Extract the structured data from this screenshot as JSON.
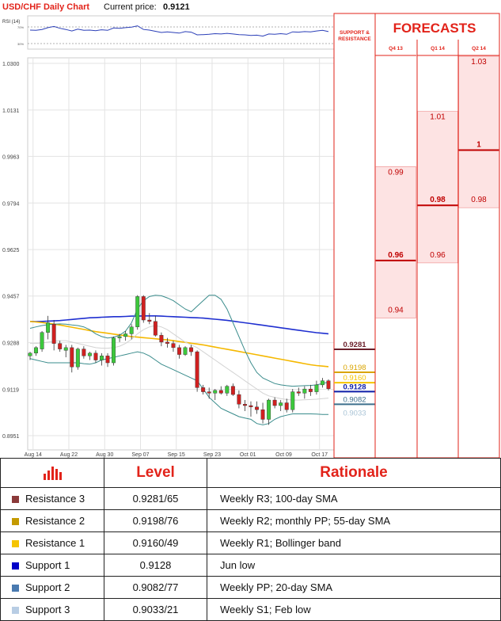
{
  "header": {
    "pair_title": "USD/CHF Daily Chart",
    "current_price_label": "Current price:",
    "current_price_value": "0.9121"
  },
  "rsi": {
    "label": "RSI (14)",
    "upper_level": "70%",
    "lower_level": "30%"
  },
  "support_resistance": {
    "heading_line1": "SUPPORT &",
    "heading_line2": "RESISTANCE",
    "levels": [
      {
        "value": 0.9281,
        "text": "0.9281",
        "color": "#6b1f2a"
      },
      {
        "value": 0.9198,
        "text": "0.9198",
        "color": "#d9a400"
      },
      {
        "value": 0.916,
        "text": "0.9160",
        "color": "#f5c400"
      },
      {
        "value": 0.9128,
        "text": "0.9128",
        "color": "#0d1ea8"
      },
      {
        "value": 0.9082,
        "text": "0.9082",
        "color": "#3d6f8c"
      },
      {
        "value": 0.9033,
        "text": "0.9033",
        "color": "#a9c4d6"
      }
    ]
  },
  "forecasts": {
    "title": "FORECASTS",
    "columns": [
      {
        "label": "Q4 13",
        "low": 0.94,
        "high": 0.99,
        "main": 0.96,
        "low_text": "0.94",
        "high_text": "0.99",
        "main_text": "0.96"
      },
      {
        "label": "Q1 14",
        "low": 0.96,
        "high": 1.01,
        "main": 0.98,
        "low_text": "0.96",
        "high_text": "1.01",
        "main_text": "0.98"
      },
      {
        "label": "Q2 14",
        "low": 0.98,
        "high": 1.03,
        "main": 1.0,
        "low_text": "0.98",
        "high_text": "1.03",
        "main_text": "1"
      }
    ]
  },
  "chart_data": {
    "type": "candlestick",
    "title": "USD/CHF Daily Chart",
    "y_tick_labels": [
      "1.0300",
      "1.0131",
      "0.9963",
      "0.9794",
      "0.9625",
      "0.9457",
      "0.9288",
      "0.9119",
      "0.8951"
    ],
    "y_ticks": [
      1.03,
      1.0131,
      0.9963,
      0.9794,
      0.9625,
      0.9457,
      0.9288,
      0.9119,
      0.8951
    ],
    "ylim": [
      0.8951,
      1.03
    ],
    "x_tick_labels": [
      "Aug 14",
      "Aug 22",
      "Aug 30",
      "Sep 07",
      "Sep 15",
      "Sep 23",
      "Oct 01",
      "Oct 09",
      "Oct 17"
    ],
    "x_tick_index": [
      0,
      6,
      12,
      18,
      24,
      30,
      36,
      42,
      48
    ],
    "candles": [
      {
        "o": 0.924,
        "h": 0.9255,
        "l": 0.9225,
        "c": 0.925
      },
      {
        "o": 0.925,
        "h": 0.9275,
        "l": 0.924,
        "c": 0.927
      },
      {
        "o": 0.9265,
        "h": 0.933,
        "l": 0.9255,
        "c": 0.9325
      },
      {
        "o": 0.9325,
        "h": 0.9385,
        "l": 0.93,
        "c": 0.936
      },
      {
        "o": 0.9355,
        "h": 0.937,
        "l": 0.926,
        "c": 0.9285
      },
      {
        "o": 0.9285,
        "h": 0.9295,
        "l": 0.9255,
        "c": 0.9265
      },
      {
        "o": 0.926,
        "h": 0.928,
        "l": 0.9235,
        "c": 0.927
      },
      {
        "o": 0.927,
        "h": 0.928,
        "l": 0.918,
        "c": 0.92
      },
      {
        "o": 0.92,
        "h": 0.927,
        "l": 0.919,
        "c": 0.9265
      },
      {
        "o": 0.9265,
        "h": 0.9275,
        "l": 0.923,
        "c": 0.924
      },
      {
        "o": 0.924,
        "h": 0.9255,
        "l": 0.9225,
        "c": 0.925
      },
      {
        "o": 0.925,
        "h": 0.926,
        "l": 0.9215,
        "c": 0.9225
      },
      {
        "o": 0.9225,
        "h": 0.925,
        "l": 0.9205,
        "c": 0.924
      },
      {
        "o": 0.924,
        "h": 0.925,
        "l": 0.92,
        "c": 0.9215
      },
      {
        "o": 0.9215,
        "h": 0.931,
        "l": 0.9205,
        "c": 0.9305
      },
      {
        "o": 0.9305,
        "h": 0.932,
        "l": 0.929,
        "c": 0.931
      },
      {
        "o": 0.931,
        "h": 0.933,
        "l": 0.9295,
        "c": 0.932
      },
      {
        "o": 0.932,
        "h": 0.9355,
        "l": 0.93,
        "c": 0.9345
      },
      {
        "o": 0.9345,
        "h": 0.946,
        "l": 0.9335,
        "c": 0.9455
      },
      {
        "o": 0.9455,
        "h": 0.946,
        "l": 0.936,
        "c": 0.937
      },
      {
        "o": 0.937,
        "h": 0.9395,
        "l": 0.9355,
        "c": 0.9365
      },
      {
        "o": 0.9365,
        "h": 0.9385,
        "l": 0.931,
        "c": 0.9315
      },
      {
        "o": 0.9315,
        "h": 0.9325,
        "l": 0.9275,
        "c": 0.929
      },
      {
        "o": 0.929,
        "h": 0.9305,
        "l": 0.927,
        "c": 0.9285
      },
      {
        "o": 0.9285,
        "h": 0.9295,
        "l": 0.9255,
        "c": 0.927
      },
      {
        "o": 0.927,
        "h": 0.928,
        "l": 0.923,
        "c": 0.9245
      },
      {
        "o": 0.9245,
        "h": 0.9275,
        "l": 0.924,
        "c": 0.927
      },
      {
        "o": 0.927,
        "h": 0.928,
        "l": 0.924,
        "c": 0.9255
      },
      {
        "o": 0.9255,
        "h": 0.926,
        "l": 0.911,
        "c": 0.9125
      },
      {
        "o": 0.9125,
        "h": 0.9135,
        "l": 0.91,
        "c": 0.911
      },
      {
        "o": 0.911,
        "h": 0.9125,
        "l": 0.9085,
        "c": 0.9105
      },
      {
        "o": 0.9105,
        "h": 0.912,
        "l": 0.908,
        "c": 0.9115
      },
      {
        "o": 0.9115,
        "h": 0.913,
        "l": 0.91,
        "c": 0.9105
      },
      {
        "o": 0.9105,
        "h": 0.9135,
        "l": 0.9095,
        "c": 0.913
      },
      {
        "o": 0.913,
        "h": 0.914,
        "l": 0.9095,
        "c": 0.91
      },
      {
        "o": 0.91,
        "h": 0.9115,
        "l": 0.905,
        "c": 0.9065
      },
      {
        "o": 0.9065,
        "h": 0.908,
        "l": 0.904,
        "c": 0.906
      },
      {
        "o": 0.906,
        "h": 0.9075,
        "l": 0.902,
        "c": 0.9055
      },
      {
        "o": 0.9055,
        "h": 0.9075,
        "l": 0.903,
        "c": 0.9045
      },
      {
        "o": 0.9045,
        "h": 0.907,
        "l": 0.8995,
        "c": 0.901
      },
      {
        "o": 0.901,
        "h": 0.9085,
        "l": 0.899,
        "c": 0.908
      },
      {
        "o": 0.908,
        "h": 0.909,
        "l": 0.905,
        "c": 0.906
      },
      {
        "o": 0.906,
        "h": 0.908,
        "l": 0.904,
        "c": 0.907
      },
      {
        "o": 0.907,
        "h": 0.9085,
        "l": 0.9035,
        "c": 0.9045
      },
      {
        "o": 0.9045,
        "h": 0.912,
        "l": 0.9035,
        "c": 0.911
      },
      {
        "o": 0.911,
        "h": 0.9125,
        "l": 0.9095,
        "c": 0.9105
      },
      {
        "o": 0.9105,
        "h": 0.913,
        "l": 0.9085,
        "c": 0.912
      },
      {
        "o": 0.912,
        "h": 0.9135,
        "l": 0.9095,
        "c": 0.911
      },
      {
        "o": 0.911,
        "h": 0.915,
        "l": 0.91,
        "c": 0.9135
      },
      {
        "o": 0.9135,
        "h": 0.916,
        "l": 0.9125,
        "c": 0.915
      },
      {
        "o": 0.915,
        "h": 0.9155,
        "l": 0.9115,
        "c": 0.9121
      }
    ],
    "overlays": [
      {
        "color": "#1f2fd0",
        "y": [
          0.9365,
          0.9364,
          0.9365,
          0.9366,
          0.9367,
          0.9368,
          0.937,
          0.9372,
          0.9374,
          0.9376,
          0.9378,
          0.9379,
          0.938,
          0.9381,
          0.9382,
          0.9382,
          0.9383,
          0.9384,
          0.9384,
          0.9385,
          0.9385,
          0.9385,
          0.9384,
          0.9383,
          0.9382,
          0.9381,
          0.938,
          0.9379,
          0.9378,
          0.9377,
          0.9375,
          0.9373,
          0.9371,
          0.9369,
          0.9366,
          0.9363,
          0.936,
          0.9357,
          0.9354,
          0.9351,
          0.9348,
          0.9345,
          0.9342,
          0.9339,
          0.9336,
          0.9333,
          0.933,
          0.9327,
          0.9324,
          0.9322,
          0.932
        ]
      },
      {
        "color": "#f5b800",
        "y": [
          0.9365,
          0.9363,
          0.9361,
          0.9358,
          0.9355,
          0.9352,
          0.9348,
          0.9344,
          0.934,
          0.9336,
          0.9332,
          0.9328,
          0.9325,
          0.9322,
          0.9319,
          0.9316,
          0.9313,
          0.931,
          0.9308,
          0.9306,
          0.9304,
          0.9302,
          0.93,
          0.9298,
          0.9295,
          0.9292,
          0.9289,
          0.9286,
          0.9283,
          0.928,
          0.9276,
          0.9272,
          0.9268,
          0.9264,
          0.926,
          0.9256,
          0.9252,
          0.9248,
          0.9244,
          0.924,
          0.9236,
          0.9232,
          0.9228,
          0.9224,
          0.922,
          0.9216,
          0.9212,
          0.9208,
          0.9205,
          0.9203,
          0.9201
        ]
      },
      {
        "color": "#3a8c8c",
        "y": [
          0.934,
          0.9345,
          0.935,
          0.9353,
          0.9355,
          0.9356,
          0.9355,
          0.9352,
          0.935,
          0.9345,
          0.9335,
          0.932,
          0.931,
          0.9305,
          0.9308,
          0.9315,
          0.933,
          0.936,
          0.941,
          0.944,
          0.9455,
          0.946,
          0.9458,
          0.945,
          0.944,
          0.9425,
          0.941,
          0.94,
          0.942,
          0.944,
          0.946,
          0.946,
          0.9445,
          0.941,
          0.936,
          0.931,
          0.926,
          0.9215,
          0.918,
          0.916,
          0.915,
          0.914,
          0.9135,
          0.9132,
          0.913,
          0.9131,
          0.9132,
          0.9133,
          0.9135,
          0.914,
          0.9145
        ]
      },
      {
        "color": "#3a8c8c",
        "y": [
          0.923,
          0.9225,
          0.922,
          0.9215,
          0.9215,
          0.9215,
          0.9215,
          0.9215,
          0.9215,
          0.9212,
          0.921,
          0.9215,
          0.9225,
          0.923,
          0.9235,
          0.924,
          0.9245,
          0.925,
          0.9255,
          0.925,
          0.924,
          0.9225,
          0.921,
          0.92,
          0.919,
          0.918,
          0.917,
          0.916,
          0.915,
          0.912,
          0.909,
          0.907,
          0.905,
          0.904,
          0.903,
          0.902,
          0.9015,
          0.901,
          0.8995,
          0.899,
          0.8995,
          0.901,
          0.902,
          0.9025,
          0.903,
          0.903,
          0.903,
          0.903,
          0.9029,
          0.9028,
          0.9028
        ]
      },
      {
        "color": "#d3d3d3",
        "y": [
          0.9285,
          0.9285,
          0.9287,
          0.929,
          0.9293,
          0.9295,
          0.9295,
          0.929,
          0.9285,
          0.928,
          0.9275,
          0.927,
          0.9268,
          0.9268,
          0.927,
          0.9275,
          0.9285,
          0.93,
          0.932,
          0.9335,
          0.9345,
          0.935,
          0.9345,
          0.9335,
          0.932,
          0.9305,
          0.929,
          0.928,
          0.927,
          0.9255,
          0.924,
          0.9225,
          0.921,
          0.9195,
          0.918,
          0.9165,
          0.915,
          0.9135,
          0.912,
          0.9105,
          0.9095,
          0.909,
          0.9085,
          0.9082,
          0.908,
          0.908,
          0.9081,
          0.9082,
          0.9083,
          0.9085,
          0.9087
        ]
      }
    ],
    "rsi_values": [
      58,
      57,
      60,
      66,
      70,
      64,
      60,
      55,
      61,
      57,
      58,
      56,
      59,
      57,
      65,
      64,
      66,
      68,
      72,
      60,
      58,
      54,
      50,
      52,
      50,
      48,
      53,
      51,
      42,
      43,
      44,
      46,
      45,
      47,
      45,
      43,
      42,
      40,
      41,
      38,
      45,
      44,
      46,
      44,
      52,
      51,
      53,
      52,
      55,
      57,
      53
    ]
  },
  "table": {
    "header_level": "Level",
    "header_rationale": "Rationale",
    "rows": [
      {
        "name": "Resistance 3",
        "level": "0.9281/65",
        "rationale": "Weekly R3; 100-day SMA",
        "color": "#8b3a3a"
      },
      {
        "name": "Resistance 2",
        "level": "0.9198/76",
        "rationale": "Weekly R2; monthly PP; 55-day SMA",
        "color": "#c49a00"
      },
      {
        "name": "Resistance 1",
        "level": "0.9160/49",
        "rationale": "Weekly R1; Bollinger band",
        "color": "#f5c400"
      },
      {
        "name": "Support 1",
        "level": "0.9128",
        "rationale": "Jun low",
        "color": "#0000c8"
      },
      {
        "name": "Support 2",
        "level": "0.9082/77",
        "rationale": "Weekly PP; 20-day SMA",
        "color": "#4a7ab0"
      },
      {
        "name": "Support 3",
        "level": "0.9033/21",
        "rationale": "Weekly S1; Feb low",
        "color": "#b8cde4"
      }
    ]
  },
  "colors": {
    "accent_red": "#e2231a",
    "bull": "#3cc83c",
    "bear": "#d02020"
  }
}
